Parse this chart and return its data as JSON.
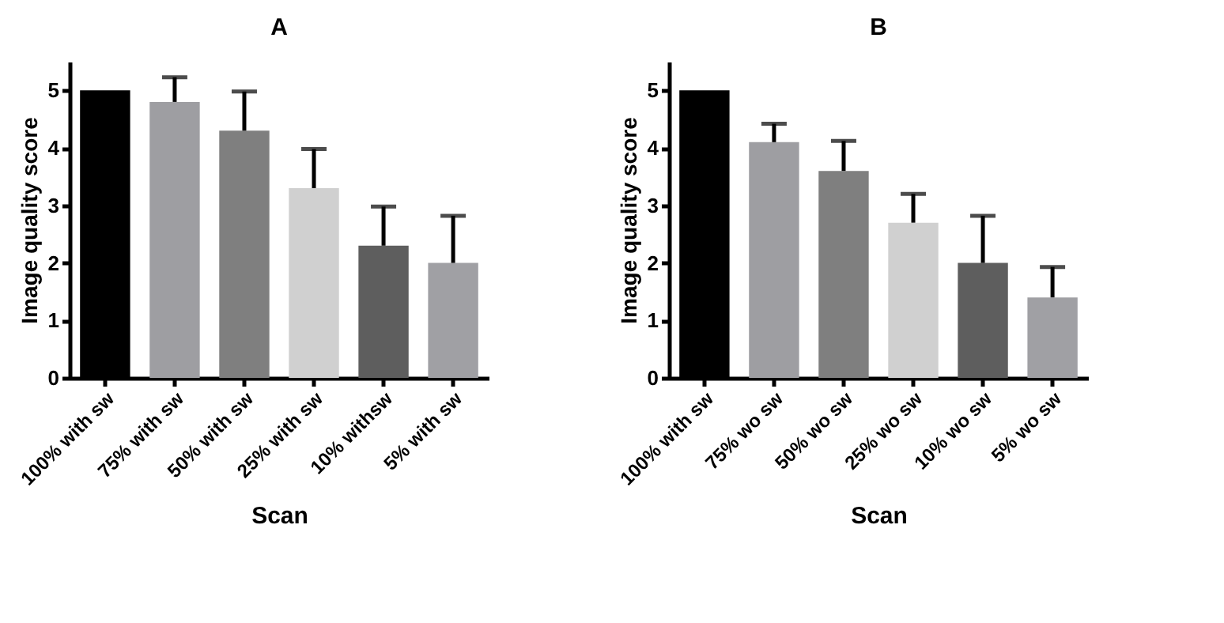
{
  "chart_data": [
    {
      "type": "bar",
      "title": "A",
      "xlabel": "Scan",
      "ylabel": "Image quality score",
      "categories": [
        "100% with sw",
        "75% with sw",
        "50% with sw",
        "25% with sw",
        "10% withsw",
        "5% with sw"
      ],
      "values": [
        5.0,
        4.8,
        4.3,
        3.3,
        2.3,
        2.0
      ],
      "colors": [
        "#000000",
        "#9e9ea2",
        "#7f7f7f",
        "#d0d0d0",
        "#5e5e5e",
        "#a0a0a4"
      ],
      "errors": [
        null,
        [
          4.8,
          5.23
        ],
        [
          4.3,
          4.98
        ],
        [
          3.3,
          3.98
        ],
        [
          2.3,
          2.98
        ],
        [
          2.0,
          2.82
        ]
      ],
      "ylim": [
        0,
        5.5
      ],
      "yticks": [
        0,
        1,
        2,
        3,
        4,
        5
      ],
      "grid": false
    },
    {
      "type": "bar",
      "title": "B",
      "xlabel": "Scan",
      "ylabel": "Image quality score",
      "categories": [
        "100% with sw",
        "75% wo sw",
        "50% wo sw",
        "25% wo sw",
        "10% wo sw",
        "5% wo sw"
      ],
      "values": [
        5.0,
        4.1,
        3.6,
        2.7,
        2.0,
        1.4
      ],
      "colors": [
        "#000000",
        "#9e9ea2",
        "#7f7f7f",
        "#d0d0d0",
        "#5e5e5e",
        "#a0a0a4"
      ],
      "errors": [
        null,
        [
          4.1,
          4.42
        ],
        [
          3.6,
          4.12
        ],
        [
          2.7,
          3.2
        ],
        [
          2.0,
          2.82
        ],
        [
          1.4,
          1.93
        ]
      ],
      "ylim": [
        0,
        5.5
      ],
      "yticks": [
        0,
        1,
        2,
        3,
        4,
        5
      ],
      "grid": false
    }
  ]
}
